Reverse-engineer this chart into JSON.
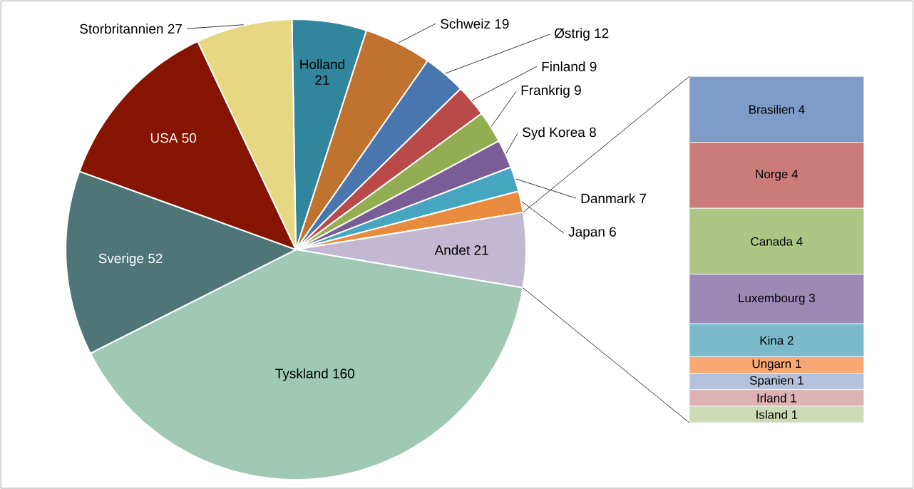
{
  "chart_data": [
    {
      "type": "pie",
      "categories": [
        "Holland",
        "Schweiz",
        "Østrig",
        "Finland",
        "Frankrig",
        "Syd Korea",
        "Danmark",
        "Japan",
        "Andet",
        "Tyskland",
        "Sverige",
        "USA",
        "Storbritannien"
      ],
      "values": [
        21,
        19,
        12,
        9,
        9,
        8,
        7,
        6,
        21,
        160,
        52,
        50,
        27
      ],
      "colors": [
        "#31859c",
        "#c0722f",
        "#4a76b0",
        "#b94a48",
        "#93ae52",
        "#7a5c96",
        "#46a6c0",
        "#e98b3e",
        "#c3b8d1",
        "#9fc9b4",
        "#4e7678",
        "#851400",
        "#e6d882"
      ],
      "data_labels": true
    },
    {
      "type": "bar",
      "stacked": true,
      "categories": [
        null
      ],
      "data_labels": true,
      "series": [
        {
          "name": "Island",
          "color": "#ccdbb5",
          "values": [
            1
          ]
        },
        {
          "name": "Irland",
          "color": "#dcb2b2",
          "values": [
            1
          ]
        },
        {
          "name": "Spanien",
          "color": "#b5c2dc",
          "values": [
            1
          ]
        },
        {
          "name": "Ungarn",
          "color": "#f7a873",
          "values": [
            1
          ]
        },
        {
          "name": "Kina",
          "color": "#7bbacd",
          "values": [
            2
          ]
        },
        {
          "name": "Luxembourg",
          "color": "#9c89b5",
          "values": [
            3
          ]
        },
        {
          "name": "Canada",
          "color": "#adc585",
          "values": [
            4
          ]
        },
        {
          "name": "Norge",
          "color": "#cc7b7b",
          "values": [
            4
          ]
        },
        {
          "name": "Brasilien",
          "color": "#7f9cc9",
          "values": [
            4
          ]
        }
      ]
    }
  ]
}
